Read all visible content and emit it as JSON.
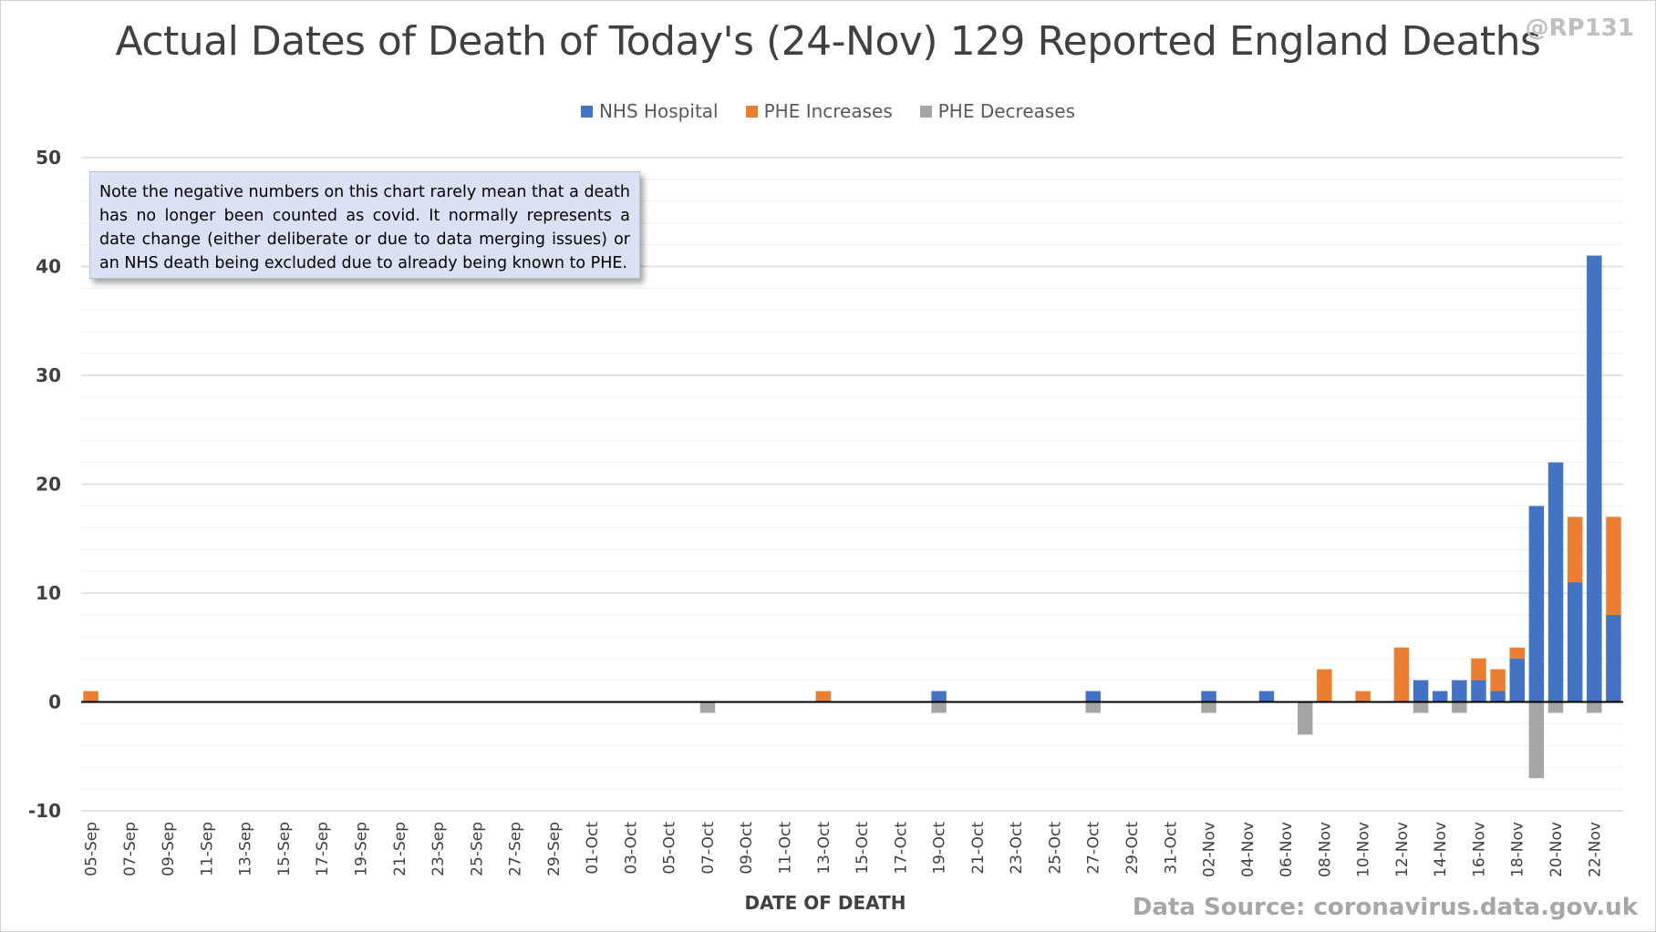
{
  "header": {
    "title": "Actual Dates of Death of Today's (24-Nov) 129 Reported England Deaths",
    "handle": "@RP131"
  },
  "legend": {
    "items": [
      {
        "label": "NHS Hospital",
        "color": "#4472c4"
      },
      {
        "label": "PHE Increases",
        "color": "#ed7d31"
      },
      {
        "label": "PHE Decreases",
        "color": "#a5a5a5"
      }
    ]
  },
  "note": {
    "text": "Note the negative numbers on this chart rarely mean that a death has no longer been counted as covid. It normally represents a date change (either deliberate or due to data merging issues) or an NHS death being excluded due to already being known to PHE."
  },
  "footer": {
    "source": "Data Source: coronavirus.data.gov.uk"
  },
  "chart_data": {
    "type": "bar",
    "stacked": true,
    "title": "Actual Dates of Death of Today's (24-Nov) 129 Reported England Deaths",
    "xlabel": "DATE OF DEATH",
    "ylabel": "",
    "ylim": [
      -10,
      50
    ],
    "yticks": [
      -10,
      0,
      10,
      20,
      30,
      40,
      50
    ],
    "grid": true,
    "legend_position": "top",
    "categories": [
      "05-Sep",
      "06-Sep",
      "07-Sep",
      "08-Sep",
      "09-Sep",
      "10-Sep",
      "11-Sep",
      "12-Sep",
      "13-Sep",
      "14-Sep",
      "15-Sep",
      "16-Sep",
      "17-Sep",
      "18-Sep",
      "19-Sep",
      "20-Sep",
      "21-Sep",
      "22-Sep",
      "23-Sep",
      "24-Sep",
      "25-Sep",
      "26-Sep",
      "27-Sep",
      "28-Sep",
      "29-Sep",
      "30-Sep",
      "01-Oct",
      "02-Oct",
      "03-Oct",
      "04-Oct",
      "05-Oct",
      "06-Oct",
      "07-Oct",
      "08-Oct",
      "09-Oct",
      "10-Oct",
      "11-Oct",
      "12-Oct",
      "13-Oct",
      "14-Oct",
      "15-Oct",
      "16-Oct",
      "17-Oct",
      "18-Oct",
      "19-Oct",
      "20-Oct",
      "21-Oct",
      "22-Oct",
      "23-Oct",
      "24-Oct",
      "25-Oct",
      "26-Oct",
      "27-Oct",
      "28-Oct",
      "29-Oct",
      "30-Oct",
      "31-Oct",
      "01-Nov",
      "02-Nov",
      "03-Nov",
      "04-Nov",
      "05-Nov",
      "06-Nov",
      "07-Nov",
      "08-Nov",
      "09-Nov",
      "10-Nov",
      "11-Nov",
      "12-Nov",
      "13-Nov",
      "14-Nov",
      "15-Nov",
      "16-Nov",
      "17-Nov",
      "18-Nov",
      "19-Nov",
      "20-Nov",
      "21-Nov",
      "22-Nov",
      "23-Nov"
    ],
    "xtick_labels": [
      "05-Sep",
      "07-Sep",
      "09-Sep",
      "11-Sep",
      "13-Sep",
      "15-Sep",
      "17-Sep",
      "19-Sep",
      "21-Sep",
      "23-Sep",
      "25-Sep",
      "27-Sep",
      "29-Sep",
      "01-Oct",
      "03-Oct",
      "05-Oct",
      "07-Oct",
      "09-Oct",
      "11-Oct",
      "13-Oct",
      "15-Oct",
      "17-Oct",
      "19-Oct",
      "21-Oct",
      "23-Oct",
      "25-Oct",
      "27-Oct",
      "29-Oct",
      "31-Oct",
      "02-Nov",
      "04-Nov",
      "06-Nov",
      "08-Nov",
      "10-Nov",
      "12-Nov",
      "14-Nov",
      "16-Nov",
      "18-Nov",
      "20-Nov",
      "22-Nov"
    ],
    "series": [
      {
        "name": "NHS Hospital",
        "color": "#4472c4",
        "points": [
          [
            "19-Oct",
            1
          ],
          [
            "27-Oct",
            1
          ],
          [
            "02-Nov",
            1
          ],
          [
            "05-Nov",
            1
          ],
          [
            "13-Nov",
            2
          ],
          [
            "14-Nov",
            1
          ],
          [
            "15-Nov",
            2
          ],
          [
            "16-Nov",
            2
          ],
          [
            "17-Nov",
            1
          ],
          [
            "18-Nov",
            4
          ],
          [
            "19-Nov",
            18
          ],
          [
            "20-Nov",
            22
          ],
          [
            "21-Nov",
            11
          ],
          [
            "22-Nov",
            41
          ],
          [
            "23-Nov",
            8
          ]
        ]
      },
      {
        "name": "PHE Increases",
        "color": "#ed7d31",
        "points": [
          [
            "05-Sep",
            1
          ],
          [
            "13-Oct",
            1
          ],
          [
            "08-Nov",
            3
          ],
          [
            "10-Nov",
            1
          ],
          [
            "12-Nov",
            5
          ],
          [
            "16-Nov",
            2
          ],
          [
            "17-Nov",
            2
          ],
          [
            "18-Nov",
            1
          ],
          [
            "21-Nov",
            6
          ],
          [
            "23-Nov",
            9
          ]
        ]
      },
      {
        "name": "PHE Decreases",
        "color": "#a5a5a5",
        "points": [
          [
            "07-Oct",
            -1
          ],
          [
            "19-Oct",
            -1
          ],
          [
            "27-Oct",
            -1
          ],
          [
            "02-Nov",
            -1
          ],
          [
            "07-Nov",
            -3
          ],
          [
            "13-Nov",
            -1
          ],
          [
            "15-Nov",
            -1
          ],
          [
            "19-Nov",
            -7
          ],
          [
            "20-Nov",
            -1
          ],
          [
            "22-Nov",
            -1
          ]
        ]
      }
    ]
  }
}
